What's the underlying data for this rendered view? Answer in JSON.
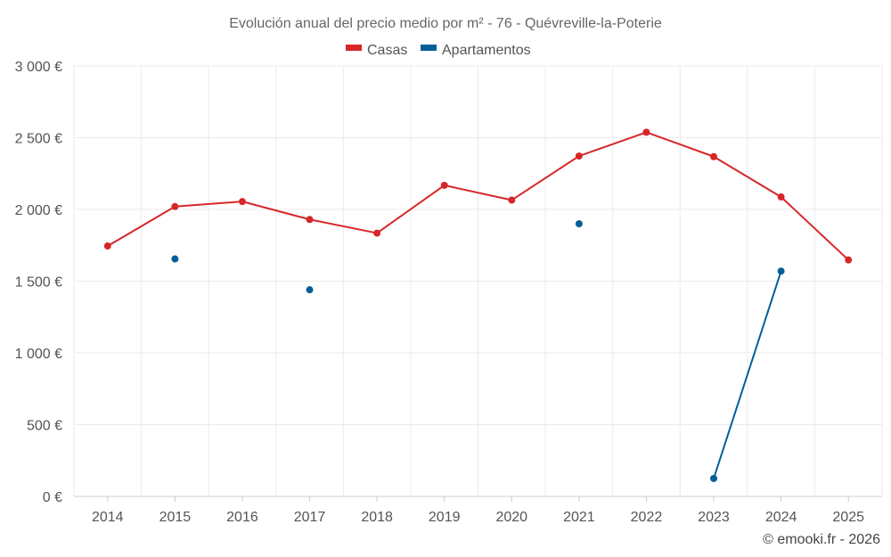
{
  "chart_data": {
    "type": "line",
    "title": "Evolución anual del precio medio por m² - 76 - Quévreville-la-Poterie",
    "categories": [
      "2014",
      "2015",
      "2016",
      "2017",
      "2018",
      "2019",
      "2020",
      "2021",
      "2022",
      "2023",
      "2024",
      "2025"
    ],
    "ylim": [
      0,
      3000
    ],
    "yticks": [
      0,
      500,
      1000,
      1500,
      2000,
      2500,
      3000
    ],
    "ytick_labels": [
      "0 €",
      "500 €",
      "1 000 €",
      "1 500 €",
      "2 000 €",
      "2 500 €",
      "3 000 €"
    ],
    "grid": true,
    "legend_position": "top-center",
    "series": [
      {
        "name": "Casas",
        "color": "#d62728",
        "values": [
          1745,
          2020,
          2055,
          1930,
          1835,
          2168,
          2065,
          2372,
          2538,
          2368,
          2087,
          1648
        ]
      },
      {
        "name": "Apartamentos",
        "color": "#005f96",
        "values": [
          null,
          1655,
          null,
          1440,
          null,
          null,
          null,
          1900,
          null,
          125,
          1570,
          null
        ]
      }
    ],
    "credit": "© emooki.fr - 2026"
  }
}
